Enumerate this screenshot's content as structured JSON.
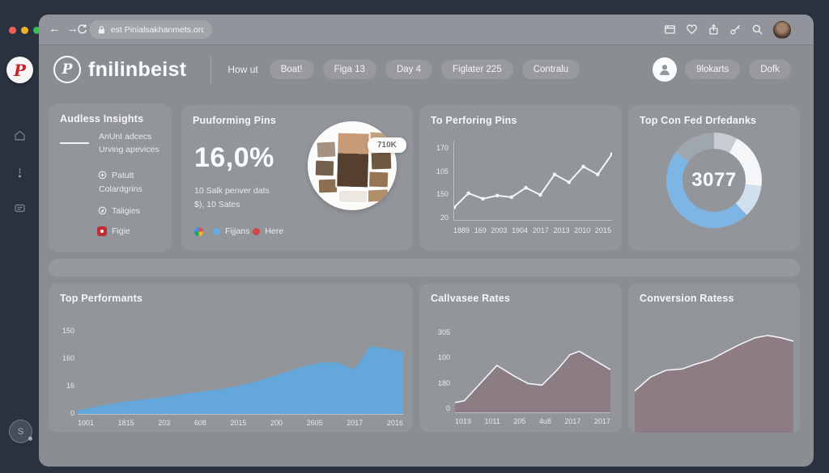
{
  "browser": {
    "url_text": "est Pinialsakhanmets.ord",
    "back": "←",
    "forward": "→",
    "toolbar_icons": [
      "panel-icon",
      "heart-icon",
      "share-icon",
      "key-icon",
      "search-icon"
    ]
  },
  "sidebar": {
    "logo_letter": "P",
    "avatar_letter": "S",
    "icons": [
      "home-icon",
      "pin-icon",
      "messages-icon"
    ]
  },
  "header": {
    "logo_letter": "P",
    "brand": "fnilinbeist",
    "nav_plain": "How ut",
    "nav_pills": [
      "Boat!",
      "Figa 13",
      "Day 4",
      "Figlater 225",
      "Contralu"
    ],
    "right_buttons": [
      "9lokarts",
      "Dofk"
    ]
  },
  "audience": {
    "title": "Audless Insights",
    "item1_line1": "AnUnt adcecs",
    "item1_line2": "Urving apevices",
    "item2_line1": "Patutt",
    "item2_line2": "Colardgrins",
    "item3": "Taligies",
    "item4": "Figie"
  },
  "performing": {
    "title": "Puuforming Pins",
    "value": "16,0%",
    "sub1": "10 Salk penver dats",
    "sub2": "$), 10 Sates",
    "tooltip": "710K",
    "legend": [
      {
        "label": "Fijjans",
        "color": "#67aadf"
      },
      {
        "label": "Here",
        "color": "#d04545"
      }
    ]
  },
  "top_performing": {
    "title": "To Perforing Pins",
    "chart_data": {
      "type": "line",
      "title": "To Perforing Pins",
      "yticks": [
        "170",
        "105",
        "150",
        "20"
      ],
      "xticks": [
        "1889",
        "169",
        "2003",
        "1904",
        "2017",
        "2013",
        "2010",
        "2015"
      ],
      "values": [
        16,
        34,
        27,
        31,
        29,
        41,
        32,
        58,
        48,
        68,
        58,
        84
      ],
      "stroke": "#f3f4f5",
      "stroke_width": 2,
      "dots": true
    }
  },
  "donut": {
    "title": "Top Con Fed Drfedanks",
    "center_value": "3077",
    "chart_data": {
      "type": "pie",
      "title": "Top Con Fed Drfedanks",
      "center_value": "3077",
      "segments": [
        {
          "name": "segment-1",
          "color": "#c7ccd2",
          "pct": 8
        },
        {
          "name": "segment-2",
          "color": "#f4f6f8",
          "pct": 19
        },
        {
          "name": "segment-3",
          "color": "#cfdfee",
          "pct": 11
        },
        {
          "name": "segment-4",
          "color": "#7db6e4",
          "pct": 47
        },
        {
          "name": "segment-5",
          "color": "#9fa6ae",
          "pct": 15
        }
      ]
    }
  },
  "top_performants": {
    "title": "Top Performants",
    "chart_data": {
      "type": "area",
      "title": "Top Performants",
      "yticks": [
        "150",
        "160",
        "16",
        "0"
      ],
      "xticks": [
        "1001",
        "1815",
        "203",
        "608",
        "2015",
        "200",
        "2605",
        "2017",
        "2016"
      ],
      "x": [
        0,
        0.07,
        0.13,
        0.2,
        0.27,
        0.34,
        0.41,
        0.48,
        0.55,
        0.63,
        0.7,
        0.75,
        0.8,
        0.85,
        0.9,
        1.0
      ],
      "values": [
        4,
        9,
        13,
        16,
        19,
        23,
        26,
        30,
        36,
        45,
        53,
        57,
        57,
        49,
        75,
        69
      ],
      "fill": "#61a8de",
      "fill_opacity": 0.95,
      "stroke": "none"
    }
  },
  "callvasee": {
    "title": "Callvasee Rates",
    "chart_data": {
      "type": "area",
      "title": "Callvasee Rates",
      "yticks": [
        "305",
        "100",
        "180",
        "0"
      ],
      "xticks": [
        "1019",
        "1011",
        "205",
        "4u8",
        "2017",
        "2017"
      ],
      "x": [
        0,
        0.06,
        0.27,
        0.38,
        0.47,
        0.56,
        0.66,
        0.74,
        0.8,
        1.0
      ],
      "values": [
        12,
        14,
        57,
        44,
        35,
        33,
        52,
        70,
        74,
        52
      ],
      "fill": "#8b777e",
      "fill_opacity": 0.8,
      "stroke": "#f2f3f4",
      "stroke_width": 1.6
    }
  },
  "conversion": {
    "title": "Conversion Ratess",
    "chart_data": {
      "type": "area",
      "title": "Conversion Ratess",
      "x": [
        0,
        0.1,
        0.2,
        0.3,
        0.38,
        0.48,
        0.56,
        0.66,
        0.76,
        0.84,
        0.92,
        1.0
      ],
      "values": [
        36,
        48,
        54,
        55,
        59,
        63,
        69,
        76,
        82,
        84,
        82,
        79
      ],
      "fill": "#8c787f",
      "fill_opacity": 0.85,
      "stroke": "#f2f3f4",
      "stroke_width": 1.6
    }
  },
  "colors": {
    "frame": "#29323e",
    "window_bg": "#8a8d92",
    "accent_blue": "#61a8de",
    "accent_red": "#c8232c",
    "mauve": "#8b777e",
    "traffic_red": "#f05f57",
    "traffic_yellow": "#f0b32e",
    "traffic_green": "#37c04f"
  }
}
